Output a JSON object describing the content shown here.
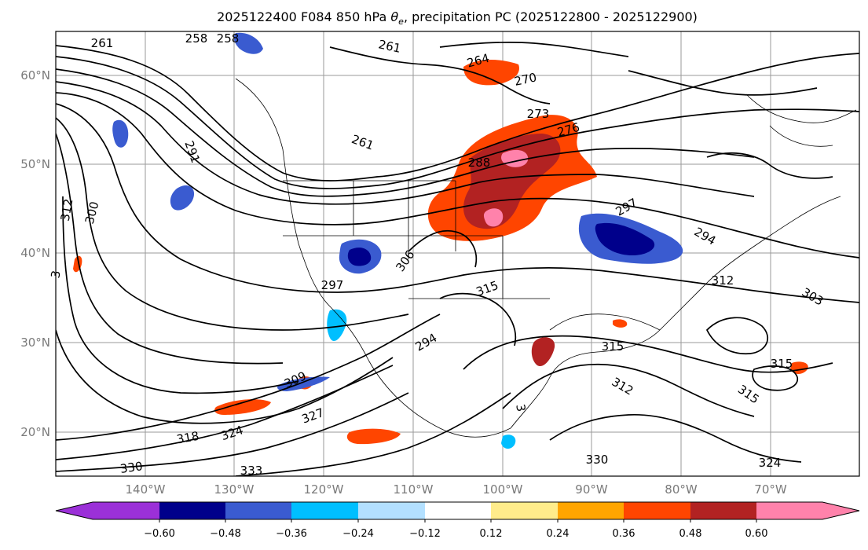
{
  "title": "2025122400 F084 850 hPa θe, precipitation PC (2025122800 - 2025122900)",
  "title_parts": {
    "prefix": "2025122400 F084 850 hPa ",
    "theta": "θ",
    "sub": "e",
    "suffix": ", precipitation PC (2025122800 - 2025122900)"
  },
  "map": {
    "lat_labels": [
      "60°N",
      "50°N",
      "40°N",
      "30°N",
      "20°N"
    ],
    "lon_labels": [
      "140°W",
      "130°W",
      "120°W",
      "110°W",
      "100°W",
      "90°W",
      "80°W",
      "70°W"
    ],
    "contour_labels": [
      "261",
      "258",
      "258",
      "261",
      "264",
      "270",
      "273",
      "276",
      "288",
      "261",
      "291",
      "300",
      "312",
      "306",
      "315",
      "297",
      "294",
      "303",
      "312",
      "315",
      "312",
      "309",
      "324",
      "318",
      "327",
      "330",
      "333",
      "324",
      "330",
      "3",
      "3"
    ]
  },
  "colorbar": {
    "ticks": [
      "−0.60",
      "−0.48",
      "−0.36",
      "−0.24",
      "−0.12",
      "0.12",
      "0.24",
      "0.36",
      "0.48",
      "0.60"
    ],
    "colors": [
      "#9b30d8",
      "#00008b",
      "#3a5bd0",
      "#00bfff",
      "#b3e0ff",
      "#ffffff",
      "#ffec8b",
      "#ffa500",
      "#ff4500",
      "#b22222",
      "#ff82ab"
    ]
  },
  "colors": {
    "precip_pos_strong": "#b22222",
    "precip_pos": "#ff4500",
    "precip_pos_light": "#ffa500",
    "precip_pos_max": "#ff82ab",
    "precip_neg_strong": "#00008b",
    "precip_neg": "#3a5bd0",
    "precip_neg_light": "#00bfff",
    "contour": "#000000"
  }
}
